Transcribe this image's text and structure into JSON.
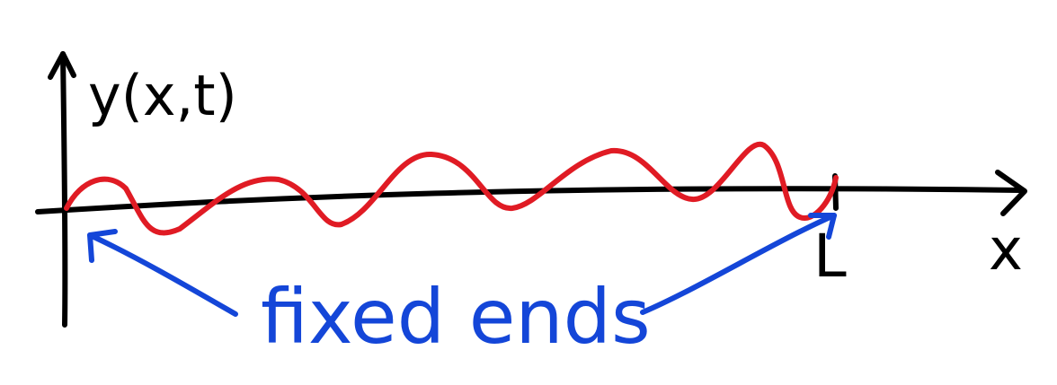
{
  "labels": {
    "y_axis": "y(x,t)",
    "x_axis": "x",
    "end_point": "L",
    "annotation": "fixed ends"
  },
  "colors": {
    "axes": "#000000",
    "wave": "#e01b24",
    "annotation": "#1446d8"
  }
}
